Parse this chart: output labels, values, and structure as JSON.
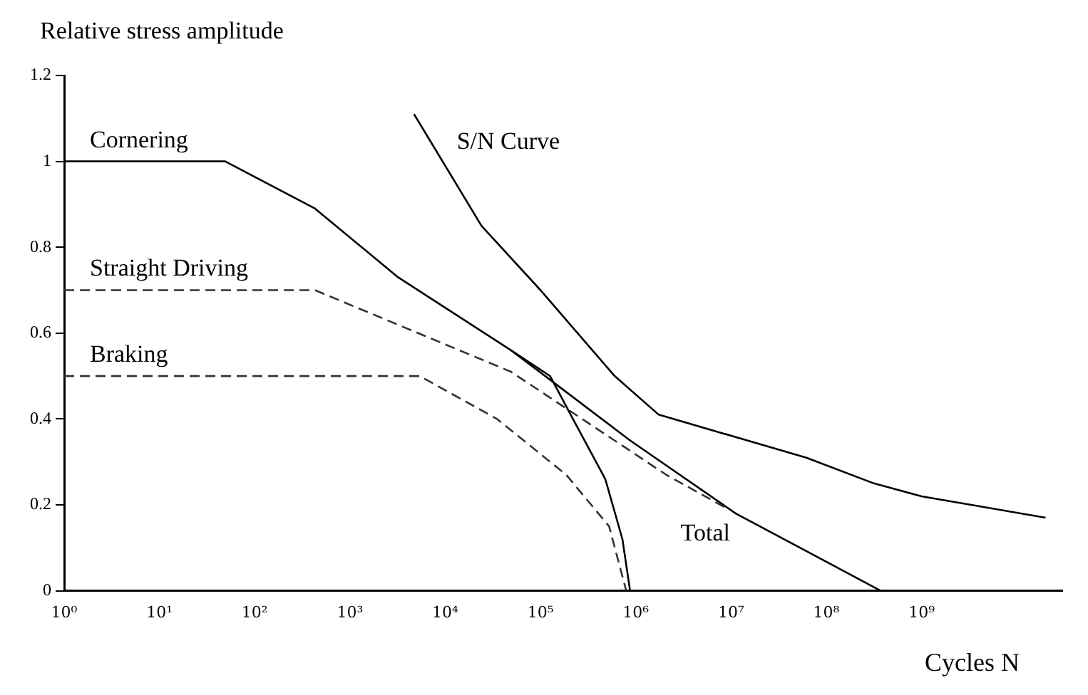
{
  "chart_data": {
    "type": "line",
    "xlabel": "Cycles N",
    "ylabel": "Relative stress amplitude",
    "log": "x",
    "xlim": [
      1,
      30000000000
    ],
    "ylim": [
      0,
      1.2
    ],
    "xticks": [
      {
        "value": 1,
        "label": "10⁰"
      },
      {
        "value": 10,
        "label": "10¹"
      },
      {
        "value": 100,
        "label": "10²"
      },
      {
        "value": 1000,
        "label": "10³"
      },
      {
        "value": 10000,
        "label": "10⁴"
      },
      {
        "value": 100000,
        "label": "10⁵"
      },
      {
        "value": 1000000,
        "label": "10⁶"
      },
      {
        "value": 10000000,
        "label": "10⁷"
      },
      {
        "value": 100000000,
        "label": "10⁸"
      },
      {
        "value": 1000000000,
        "label": "10⁹"
      }
    ],
    "yticks": [
      0,
      0.2,
      0.4,
      0.6,
      0.8,
      1,
      1.2
    ],
    "grid": false,
    "legend": false,
    "marker": "none",
    "series": [
      {
        "name": "Cornering",
        "color": "#000000",
        "line_style": "solid",
        "x": [
          1,
          49,
          430,
          3200,
          49000,
          126000,
          219000,
          479000,
          724000,
          871000
        ],
        "values": [
          1,
          1,
          0.89,
          0.73,
          0.56,
          0.5,
          0.4,
          0.26,
          0.12,
          0
        ]
      },
      {
        "name": "Straight Driving",
        "color": "#333333",
        "line_style": "dashed",
        "x": [
          1,
          430,
          49000,
          2090000,
          9330000
        ],
        "values": [
          0.7,
          0.7,
          0.51,
          0.27,
          0.19
        ]
      },
      {
        "name": "Braking",
        "color": "#333333",
        "line_style": "dashed",
        "x": [
          1,
          5400,
          35000,
          186000,
          525000,
          794000
        ],
        "values": [
          0.5,
          0.5,
          0.4,
          0.27,
          0.15,
          0
        ]
      },
      {
        "name": "Total",
        "color": "#000000",
        "line_style": "solid",
        "x": [
          49000,
          112000,
          871000,
          11200000,
          372000000
        ],
        "values": [
          0.56,
          0.5,
          0.35,
          0.18,
          0
        ]
      },
      {
        "name": "S/N Curve",
        "color": "#000000",
        "line_style": "solid",
        "x": [
          4700,
          24000,
          100000,
          600000,
          1740000,
          61700000,
          316000000,
          1000000000,
          20000000000
        ],
        "values": [
          1.11,
          0.85,
          0.7,
          0.5,
          0.41,
          0.31,
          0.25,
          0.22,
          0.17
        ]
      }
    ]
  }
}
